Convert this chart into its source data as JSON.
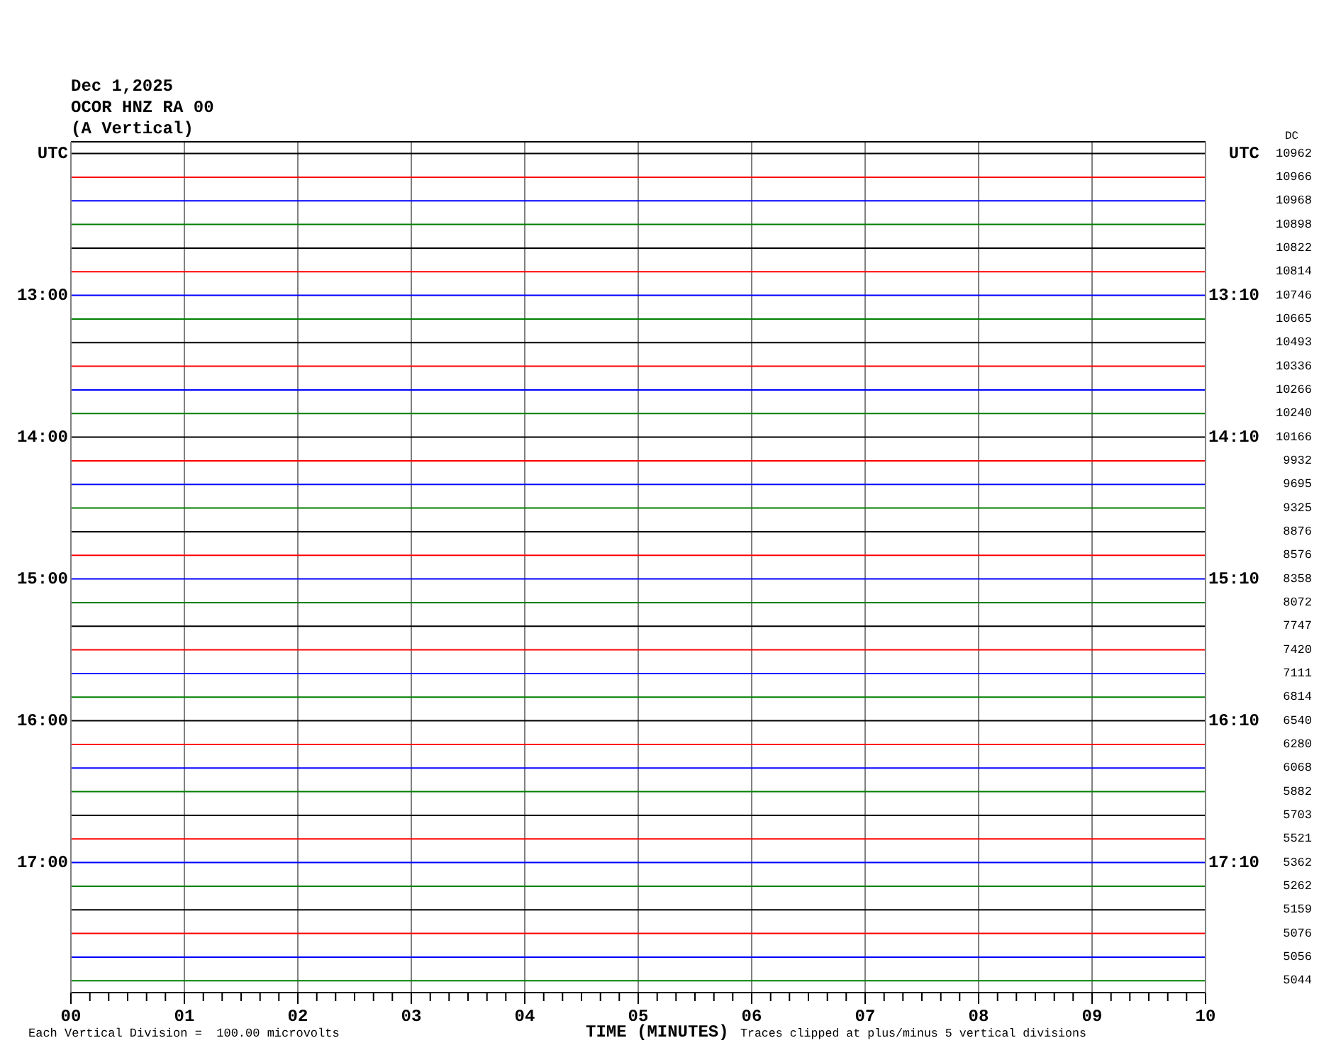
{
  "chart_data": {
    "type": "line",
    "title": "Dec 1,2025",
    "subtitle": "OCOR HNZ RA 00",
    "xlabel": "TIME (MINUTES)",
    "legend_title": "DC",
    "annotations": [
      "(A Vertical)",
      "Each Vertical Division =  100.00 microvolts",
      "Traces clipped at plus/minus 5 vertical divisions"
    ],
    "x": [
      0,
      10
    ],
    "xlim": [
      0,
      10
    ],
    "xticks": [
      {
        "value": 0,
        "label": "00"
      },
      {
        "value": 0.167,
        "label": null
      },
      {
        "value": 0.333,
        "label": null
      },
      {
        "value": 0.5,
        "label": null
      },
      {
        "value": 0.667,
        "label": null
      },
      {
        "value": 0.833,
        "label": null
      },
      {
        "value": 1,
        "label": "01"
      },
      {
        "value": 1.167,
        "label": null
      },
      {
        "value": 1.333,
        "label": null
      },
      {
        "value": 1.5,
        "label": null
      },
      {
        "value": 1.667,
        "label": null
      },
      {
        "value": 1.833,
        "label": null
      },
      {
        "value": 2,
        "label": "02"
      },
      {
        "value": 2.167,
        "label": null
      },
      {
        "value": 2.333,
        "label": null
      },
      {
        "value": 2.5,
        "label": null
      },
      {
        "value": 2.667,
        "label": null
      },
      {
        "value": 2.833,
        "label": null
      },
      {
        "value": 3,
        "label": "03"
      },
      {
        "value": 3.167,
        "label": null
      },
      {
        "value": 3.333,
        "label": null
      },
      {
        "value": 3.5,
        "label": null
      },
      {
        "value": 3.667,
        "label": null
      },
      {
        "value": 3.833,
        "label": null
      },
      {
        "value": 4,
        "label": "04"
      },
      {
        "value": 4.167,
        "label": null
      },
      {
        "value": 4.333,
        "label": null
      },
      {
        "value": 4.5,
        "label": null
      },
      {
        "value": 4.667,
        "label": null
      },
      {
        "value": 4.833,
        "label": null
      },
      {
        "value": 5,
        "label": "05"
      },
      {
        "value": 5.167,
        "label": null
      },
      {
        "value": 5.333,
        "label": null
      },
      {
        "value": 5.5,
        "label": null
      },
      {
        "value": 5.667,
        "label": null
      },
      {
        "value": 5.833,
        "label": null
      },
      {
        "value": 6,
        "label": "06"
      },
      {
        "value": 6.167,
        "label": null
      },
      {
        "value": 6.333,
        "label": null
      },
      {
        "value": 6.5,
        "label": null
      },
      {
        "value": 6.667,
        "label": null
      },
      {
        "value": 6.833,
        "label": null
      },
      {
        "value": 7,
        "label": "07"
      },
      {
        "value": 7.167,
        "label": null
      },
      {
        "value": 7.333,
        "label": null
      },
      {
        "value": 7.5,
        "label": null
      },
      {
        "value": 7.667,
        "label": null
      },
      {
        "value": 7.833,
        "label": null
      },
      {
        "value": 8,
        "label": "08"
      },
      {
        "value": 8.167,
        "label": null
      },
      {
        "value": 8.333,
        "label": null
      },
      {
        "value": 8.5,
        "label": null
      },
      {
        "value": 8.667,
        "label": null
      },
      {
        "value": 8.833,
        "label": null
      },
      {
        "value": 9,
        "label": "09"
      },
      {
        "value": 9.167,
        "label": null
      },
      {
        "value": 9.333,
        "label": null
      },
      {
        "value": 9.5,
        "label": null
      },
      {
        "value": 9.667,
        "label": null
      },
      {
        "value": 9.833,
        "label": null
      },
      {
        "value": 10,
        "label": "10"
      }
    ],
    "ylim": [
      17.917,
      11.917
    ],
    "yticks": [
      {
        "value": 12,
        "label": "UTC"
      },
      {
        "value": 13,
        "label": "13:00"
      },
      {
        "value": 14,
        "label": "14:00"
      },
      {
        "value": 15,
        "label": "15:00"
      },
      {
        "value": 16,
        "label": "16:00"
      },
      {
        "value": 17,
        "label": "17:00"
      }
    ],
    "y2lim": [
      18.083,
      12.083
    ],
    "y2ticks": [
      {
        "value": 12.167,
        "label": "UTC"
      },
      {
        "value": 13.167,
        "label": "13:10"
      },
      {
        "value": 14.167,
        "label": "14:10"
      },
      {
        "value": 15.167,
        "label": "15:10"
      },
      {
        "value": 16.167,
        "label": "16:10"
      },
      {
        "value": 17.167,
        "label": "17:10"
      }
    ],
    "grid": "x",
    "series": [
      {
        "name": "10962",
        "color": "#000000",
        "values": [
          12,
          12
        ]
      },
      {
        "name": "10966",
        "color": "#ff0000",
        "values": [
          12.167,
          12.167
        ]
      },
      {
        "name": "10968",
        "color": "#0000ff",
        "values": [
          12.333,
          12.333
        ]
      },
      {
        "name": "10898",
        "color": "#008000",
        "values": [
          12.5,
          12.5
        ]
      },
      {
        "name": "10822",
        "color": "#000000",
        "values": [
          12.667,
          12.667
        ]
      },
      {
        "name": "10814",
        "color": "#ff0000",
        "values": [
          12.833,
          12.833
        ]
      },
      {
        "name": "10746",
        "color": "#0000ff",
        "values": [
          13,
          13
        ]
      },
      {
        "name": "10665",
        "color": "#008000",
        "values": [
          13.167,
          13.167
        ]
      },
      {
        "name": "10493",
        "color": "#000000",
        "values": [
          13.333,
          13.333
        ]
      },
      {
        "name": "10336",
        "color": "#ff0000",
        "values": [
          13.5,
          13.5
        ]
      },
      {
        "name": "10266",
        "color": "#0000ff",
        "values": [
          13.667,
          13.667
        ]
      },
      {
        "name": "10240",
        "color": "#008000",
        "values": [
          13.833,
          13.833
        ]
      },
      {
        "name": "10166",
        "color": "#000000",
        "values": [
          14,
          14
        ]
      },
      {
        "name": "9932",
        "color": "#ff0000",
        "values": [
          14.167,
          14.167
        ]
      },
      {
        "name": "9695",
        "color": "#0000ff",
        "values": [
          14.333,
          14.333
        ]
      },
      {
        "name": "9325",
        "color": "#008000",
        "values": [
          14.5,
          14.5
        ]
      },
      {
        "name": "8876",
        "color": "#000000",
        "values": [
          14.667,
          14.667
        ]
      },
      {
        "name": "8576",
        "color": "#ff0000",
        "values": [
          14.833,
          14.833
        ]
      },
      {
        "name": "8358",
        "color": "#0000ff",
        "values": [
          15,
          15
        ]
      },
      {
        "name": "8072",
        "color": "#008000",
        "values": [
          15.167,
          15.167
        ]
      },
      {
        "name": "7747",
        "color": "#000000",
        "values": [
          15.333,
          15.333
        ]
      },
      {
        "name": "7420",
        "color": "#ff0000",
        "values": [
          15.5,
          15.5
        ]
      },
      {
        "name": "7111",
        "color": "#0000ff",
        "values": [
          15.667,
          15.667
        ]
      },
      {
        "name": "6814",
        "color": "#008000",
        "values": [
          15.833,
          15.833
        ]
      },
      {
        "name": "6540",
        "color": "#000000",
        "values": [
          16,
          16
        ]
      },
      {
        "name": "6280",
        "color": "#ff0000",
        "values": [
          16.167,
          16.167
        ]
      },
      {
        "name": "6068",
        "color": "#0000ff",
        "values": [
          16.333,
          16.333
        ]
      },
      {
        "name": "5882",
        "color": "#008000",
        "values": [
          16.5,
          16.5
        ]
      },
      {
        "name": "5703",
        "color": "#000000",
        "values": [
          16.667,
          16.667
        ]
      },
      {
        "name": "5521",
        "color": "#ff0000",
        "values": [
          16.833,
          16.833
        ]
      },
      {
        "name": "5362",
        "color": "#0000ff",
        "values": [
          17,
          17
        ]
      },
      {
        "name": "5262",
        "color": "#008000",
        "values": [
          17.167,
          17.167
        ]
      },
      {
        "name": "5159",
        "color": "#000000",
        "values": [
          17.333,
          17.333
        ]
      },
      {
        "name": "5076",
        "color": "#ff0000",
        "values": [
          17.5,
          17.5
        ]
      },
      {
        "name": "5056",
        "color": "#0000ff",
        "values": [
          17.667,
          17.667
        ]
      },
      {
        "name": "5044",
        "color": "#008000",
        "values": [
          17.833,
          17.833
        ]
      }
    ]
  }
}
